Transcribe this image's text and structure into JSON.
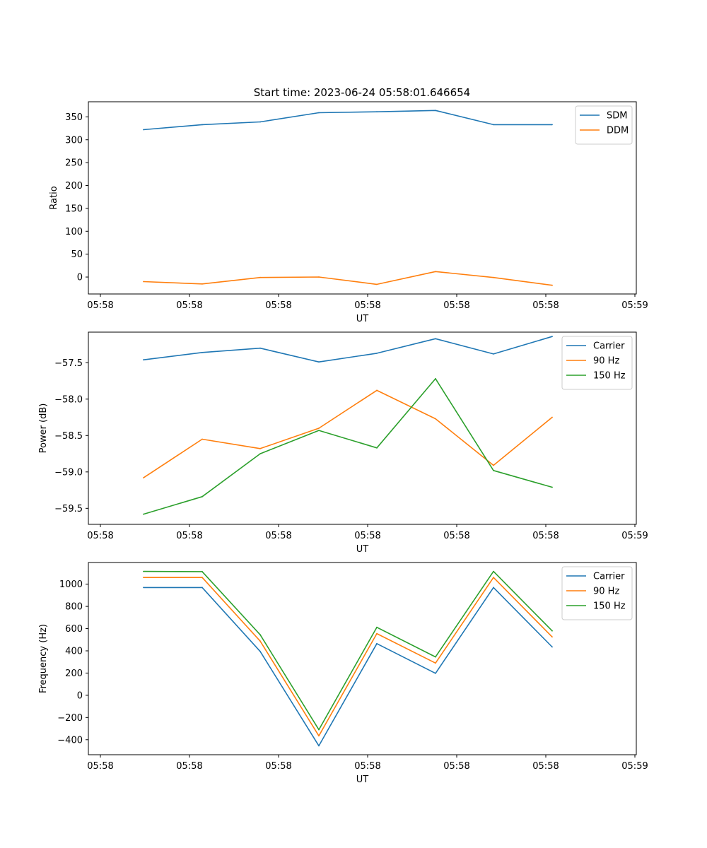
{
  "figure_title": "Start time: 2023-06-24 05:58:01.646654",
  "colors": {
    "blue": "#1f77b4",
    "orange": "#ff7f0e",
    "green": "#2ca02c"
  },
  "chart_data": [
    {
      "type": "line",
      "title": "Start time: 2023-06-24 05:58:01.646654",
      "xlabel": "UT",
      "ylabel": "Ratio",
      "x_tick_labels": [
        "05:58",
        "05:58",
        "05:58",
        "05:58",
        "05:58",
        "05:58",
        "05:59"
      ],
      "y_ticks": [
        0,
        50,
        100,
        150,
        200,
        250,
        300,
        350
      ],
      "ylim": [
        -37,
        383
      ],
      "legend_position": "upper right",
      "grid": false,
      "series": [
        {
          "name": "SDM",
          "color": "#1f77b4",
          "values": [
            322,
            333,
            339,
            359,
            361,
            364,
            333,
            333
          ]
        },
        {
          "name": "DDM",
          "color": "#ff7f0e",
          "values": [
            -10,
            -15,
            -1,
            0,
            -16,
            12,
            -1,
            -18
          ]
        }
      ]
    },
    {
      "type": "line",
      "title": "",
      "xlabel": "UT",
      "ylabel": "Power (dB)",
      "x_tick_labels": [
        "05:58",
        "05:58",
        "05:58",
        "05:58",
        "05:58",
        "05:58",
        "05:59"
      ],
      "y_ticks": [
        -59.5,
        -59.0,
        -58.5,
        -58.0,
        -57.5
      ],
      "y_tick_labels": [
        "−59.5",
        "−59.0",
        "−58.5",
        "−58.0",
        "−57.5"
      ],
      "ylim": [
        -59.72,
        -57.08
      ],
      "legend_position": "upper right",
      "grid": false,
      "series": [
        {
          "name": "Carrier",
          "color": "#1f77b4",
          "values": [
            -57.46,
            -57.36,
            -57.3,
            -57.49,
            -57.37,
            -57.17,
            -57.38,
            -57.14
          ]
        },
        {
          "name": "90 Hz",
          "color": "#ff7f0e",
          "values": [
            -59.08,
            -58.55,
            -58.68,
            -58.4,
            -57.88,
            -58.27,
            -58.91,
            -58.25
          ]
        },
        {
          "name": "150 Hz",
          "color": "#2ca02c",
          "values": [
            -59.58,
            -59.34,
            -58.75,
            -58.43,
            -58.67,
            -57.72,
            -58.98,
            -59.21
          ]
        }
      ]
    },
    {
      "type": "line",
      "title": "",
      "xlabel": "UT",
      "ylabel": "Frequency (Hz)",
      "x_tick_labels": [
        "05:58",
        "05:58",
        "05:58",
        "05:58",
        "05:58",
        "05:58",
        "05:59"
      ],
      "y_ticks": [
        -400,
        -200,
        0,
        200,
        400,
        600,
        800,
        1000
      ],
      "y_tick_labels": [
        "−400",
        "−200",
        "0",
        "200",
        "400",
        "600",
        "800",
        "1000"
      ],
      "ylim": [
        -535,
        1195
      ],
      "legend_position": "upper right",
      "grid": false,
      "series": [
        {
          "name": "Carrier",
          "color": "#1f77b4",
          "values": [
            970,
            970,
            395,
            -455,
            465,
            198,
            970,
            435
          ]
        },
        {
          "name": "90 Hz",
          "color": "#ff7f0e",
          "values": [
            1060,
            1060,
            488,
            -365,
            555,
            290,
            1060,
            525
          ]
        },
        {
          "name": "150 Hz",
          "color": "#2ca02c",
          "values": [
            1115,
            1113,
            545,
            -310,
            612,
            345,
            1115,
            580
          ]
        }
      ]
    }
  ]
}
